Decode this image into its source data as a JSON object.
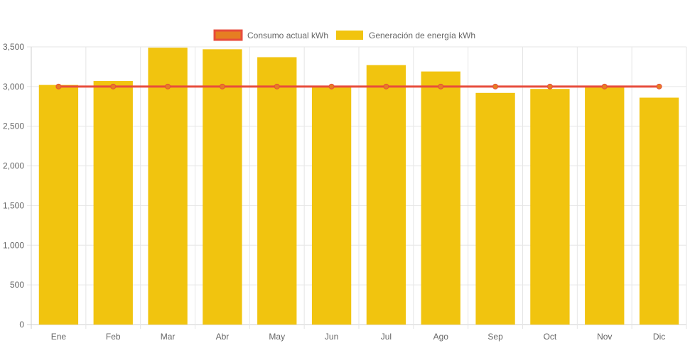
{
  "chart_data": {
    "type": "bar",
    "categories": [
      "Ene",
      "Feb",
      "Mar",
      "Abr",
      "May",
      "Jun",
      "Jul",
      "Ago",
      "Sep",
      "Oct",
      "Nov",
      "Dic"
    ],
    "series": [
      {
        "name": "Consumo actual kWh",
        "kind": "line",
        "values": [
          3000,
          3000,
          3000,
          3000,
          3000,
          3000,
          3000,
          3000,
          3000,
          3000,
          3000,
          3000
        ],
        "color": "#e74c3c",
        "point_color": "#e67e22"
      },
      {
        "name": "Generación de energía kWh",
        "kind": "bar",
        "values": [
          3020,
          3070,
          3490,
          3470,
          3370,
          2995,
          3270,
          3190,
          2920,
          2970,
          3005,
          2860
        ],
        "color": "#f1c40f"
      }
    ],
    "ylim": [
      0,
      3500
    ],
    "yticks": [
      0,
      500,
      1000,
      1500,
      2000,
      2500,
      3000,
      3500
    ],
    "ytick_labels": [
      "0",
      "500",
      "1,000",
      "1,500",
      "2,000",
      "2,500",
      "3,000",
      "3,500"
    ],
    "grid": true,
    "legend_position": "top-center",
    "title": "",
    "xlabel": "",
    "ylabel": ""
  }
}
